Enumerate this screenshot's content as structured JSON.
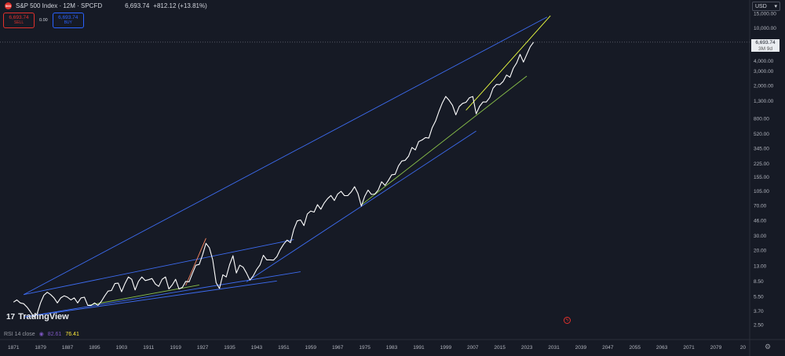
{
  "header": {
    "symbol_logo": "500",
    "title": "S&P 500 Index · 12M · SPCFD",
    "price": "6,693.74",
    "change": "+812.12 (+13.81%)"
  },
  "trade": {
    "sell_price": "6,693.74",
    "sell_label": "SELL",
    "spread": "0.00",
    "buy_price": "6,693.74",
    "buy_label": "BUY"
  },
  "currency": "USD",
  "price_tag": {
    "price": "6,693.74",
    "countdown": "3M 9d"
  },
  "brand": {
    "mark": "17",
    "name": "TradingView"
  },
  "rsi": {
    "label": "RSI 14 close",
    "value1": "82.61",
    "value2": "76.41"
  },
  "colors": {
    "background": "#161a25",
    "price_line": "#ffffff",
    "channel": "#3d6cf2",
    "trend_green": "#8bc34a",
    "trend_yellow": "#eeff41",
    "trend_orange": "#ff8a65",
    "sell": "#e0312c",
    "buy": "#2962ff"
  },
  "chart_data": {
    "type": "line",
    "y_scale": "log",
    "ylim": [
      2.2,
      16000
    ],
    "xlim": [
      1867,
      2089
    ],
    "x_tick_labels": [
      "1871",
      "1879",
      "1887",
      "1895",
      "1903",
      "1911",
      "1919",
      "1927",
      "1935",
      "1943",
      "1951",
      "1959",
      "1967",
      "1975",
      "1983",
      "1991",
      "1999",
      "2007",
      "2015",
      "2023",
      "2031",
      "2039",
      "2047",
      "2055",
      "2063",
      "2071",
      "2079",
      "20"
    ],
    "y_tick_labels": [
      "15,000.00",
      "10,000.00",
      "6,000.00",
      "4,000.00",
      "3,000.00",
      "2,000.00",
      "1,300.00",
      "800.00",
      "520.00",
      "345.00",
      "225.00",
      "155.00",
      "105.00",
      "70.00",
      "46.00",
      "30.00",
      "20.00",
      "13.00",
      "8.50",
      "5.50",
      "3.70",
      "2.50"
    ],
    "series": [
      {
        "x": [
          1871,
          1872,
          1873,
          1874,
          1875,
          1876,
          1877,
          1878,
          1879,
          1880,
          1881,
          1882,
          1883,
          1884,
          1885,
          1886,
          1887,
          1888,
          1889,
          1890,
          1891,
          1892,
          1893,
          1894,
          1895,
          1896,
          1897,
          1898,
          1899,
          1900,
          1901,
          1902,
          1903,
          1904,
          1905,
          1906,
          1907,
          1908,
          1909,
          1910,
          1911,
          1912,
          1913,
          1914,
          1915,
          1916,
          1917,
          1918,
          1919,
          1920,
          1921,
          1922,
          1923,
          1924,
          1925,
          1926,
          1927,
          1928,
          1929,
          1930,
          1931,
          1932,
          1933,
          1934,
          1935,
          1936,
          1937,
          1938,
          1939,
          1940,
          1941,
          1942,
          1943,
          1944,
          1945,
          1946,
          1947,
          1948,
          1949,
          1950,
          1951,
          1952,
          1953,
          1954,
          1955,
          1956,
          1957,
          1958,
          1959,
          1960,
          1961,
          1962,
          1963,
          1964,
          1965,
          1966,
          1967,
          1968,
          1969,
          1970,
          1971,
          1972,
          1973,
          1974,
          1975,
          1976,
          1977,
          1978,
          1979,
          1980,
          1981,
          1982,
          1983,
          1984,
          1985,
          1986,
          1987,
          1988,
          1989,
          1990,
          1991,
          1992,
          1993,
          1994,
          1995,
          1996,
          1997,
          1998,
          1999,
          2000,
          2001,
          2002,
          2003,
          2004,
          2005,
          2006,
          2007,
          2008,
          2009,
          2010,
          2011,
          2012,
          2013,
          2014,
          2015,
          2016,
          2017,
          2018,
          2019,
          2020,
          2021,
          2022,
          2023,
          2024,
          2025
        ],
        "values": [
          4.7,
          5.0,
          4.6,
          4.5,
          4.1,
          3.6,
          3.1,
          3.4,
          4.6,
          5.7,
          6.2,
          5.8,
          5.3,
          4.6,
          5.3,
          5.6,
          5.4,
          5.0,
          5.3,
          4.6,
          5.3,
          5.4,
          4.3,
          4.3,
          4.6,
          4.3,
          4.8,
          5.6,
          6.4,
          6.5,
          7.9,
          8.0,
          6.3,
          7.9,
          9.5,
          8.9,
          6.6,
          8.4,
          9.5,
          8.6,
          8.8,
          9.1,
          7.8,
          7.3,
          8.9,
          9.5,
          6.8,
          7.6,
          8.9,
          6.8,
          7.1,
          8.4,
          8.3,
          10.5,
          13.2,
          13.5,
          17.7,
          24.3,
          21.5,
          15.3,
          8.1,
          6.9,
          10.1,
          9.5,
          13.4,
          17.2,
          10.6,
          13.2,
          12.5,
          10.6,
          8.7,
          9.8,
          11.7,
          13.3,
          17.4,
          15.3,
          15.3,
          15.2,
          16.8,
          20.4,
          23.8,
          26.6,
          24.8,
          35.9,
          45.5,
          46.7,
          39.9,
          55.2,
          59.9,
          58.1,
          71.6,
          63.1,
          75.0,
          84.8,
          92.4,
          80.3,
          96.5,
          103.9,
          92.1,
          92.2,
          102.1,
          118.1,
          97.6,
          68.6,
          90.2,
          107.5,
          95.1,
          96.1,
          107.9,
          135.8,
          122.6,
          140.6,
          164.9,
          167.2,
          211.3,
          242.2,
          247.1,
          277.7,
          353.4,
          330.2,
          417.1,
          435.7,
          466.5,
          459.3,
          615.9,
          740.7,
          970.4,
          1229.2,
          1469.3,
          1320.3,
          1148.1,
          879.8,
          1111.9,
          1211.9,
          1248.3,
          1418.3,
          1468.4,
          903.3,
          1115.1,
          1257.6,
          1257.6,
          1426.2,
          1848.4,
          2058.9,
          2043.9,
          2238.8,
          2673.6,
          2506.9,
          3230.8,
          3756.1,
          4766.2,
          3839.5,
          4769.8,
          5881.6,
          6693.74
        ]
      }
    ],
    "annotation_lines": [
      {
        "color": "channel",
        "x": [
          1874,
          2029
        ],
        "y": [
          5.8,
          13500
        ]
      },
      {
        "color": "channel",
        "x": [
          1874,
          1949
        ],
        "y": [
          3.1,
          8.5
        ]
      },
      {
        "color": "channel",
        "x": [
          1874,
          1956
        ],
        "y": [
          3.1,
          11.0
        ]
      },
      {
        "color": "channel",
        "x": [
          1874,
          1954
        ],
        "y": [
          5.8,
          27.0
        ]
      },
      {
        "color": "channel",
        "x": [
          1940,
          2008
        ],
        "y": [
          8.3,
          560
        ]
      },
      {
        "color": "trend_green",
        "x": [
          1893,
          1926
        ],
        "y": [
          4.3,
          7.6
        ]
      },
      {
        "color": "trend_green",
        "x": [
          1974,
          2023
        ],
        "y": [
          71,
          2600
        ]
      },
      {
        "color": "trend_yellow",
        "x": [
          2005,
          2030
        ],
        "y": [
          1000,
          14000
        ]
      },
      {
        "color": "trend_orange",
        "x": [
          1922,
          1928
        ],
        "y": [
          7.5,
          28.0
        ]
      }
    ]
  }
}
